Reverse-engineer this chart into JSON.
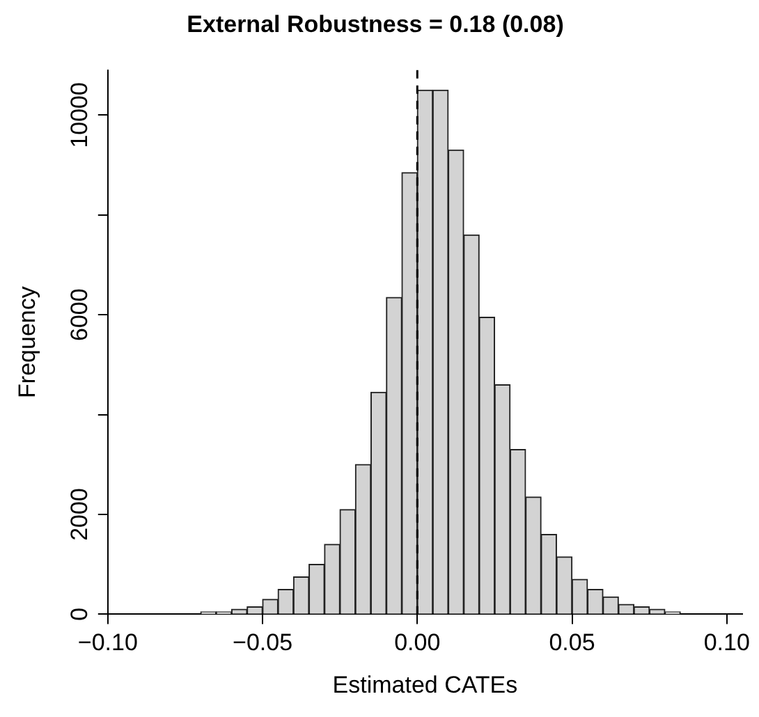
{
  "chart_data": {
    "type": "histogram",
    "title": "External Robustness = 0.18 (0.08)",
    "xlabel": "Estimated CATEs",
    "ylabel": "Frequency",
    "bins": [
      -0.1,
      -0.095,
      -0.09,
      -0.085,
      -0.08,
      -0.075,
      -0.07,
      -0.065,
      -0.06,
      -0.055,
      -0.05,
      -0.045,
      -0.04,
      -0.035,
      -0.03,
      -0.025,
      -0.02,
      -0.015,
      -0.01,
      -0.005,
      0,
      0.005,
      0.01,
      0.015,
      0.02,
      0.025,
      0.03,
      0.035,
      0.04,
      0.045,
      0.05,
      0.055,
      0.06,
      0.065,
      0.07,
      0.075,
      0.08,
      0.085,
      0.09,
      0.095,
      0.1,
      0.105
    ],
    "values": [
      0,
      0,
      0,
      0,
      0,
      0,
      50,
      50,
      100,
      150,
      300,
      500,
      750,
      1000,
      1400,
      2100,
      3000,
      4450,
      6350,
      8850,
      10500,
      10500,
      9300,
      7600,
      5950,
      4600,
      3300,
      2350,
      1600,
      1150,
      700,
      500,
      350,
      200,
      150,
      100,
      50,
      0,
      0,
      0,
      0
    ],
    "color": "#d3d3d3",
    "xlim": [
      -0.1,
      0.105
    ],
    "xticks": [
      {
        "value": -0.1,
        "label": "−0.10"
      },
      {
        "value": -0.05,
        "label": "−0.05"
      },
      {
        "value": 0,
        "label": "0.00"
      },
      {
        "value": 0.05,
        "label": "0.05"
      },
      {
        "value": 0.1,
        "label": "0.10"
      }
    ],
    "ylim": [
      0,
      10900
    ],
    "yticks": [
      0,
      2000,
      {
        "value": 4000,
        "label": null
      },
      6000,
      {
        "value": 8000,
        "label": null
      },
      10000
    ],
    "ref_lines": [
      {
        "axis": "x",
        "value": 0,
        "line_style": "dashed",
        "color": "#000000"
      }
    ],
    "grid": false,
    "legend": false
  }
}
